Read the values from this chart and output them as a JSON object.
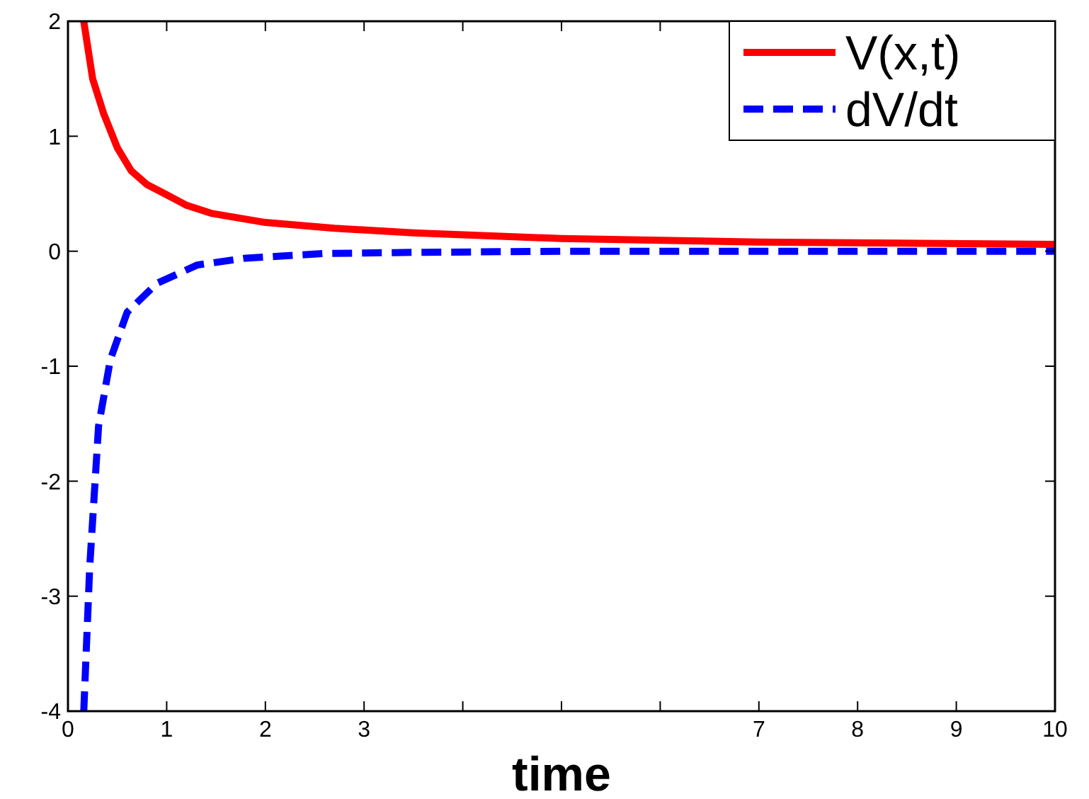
{
  "chart_data": {
    "type": "line",
    "xlabel": "time",
    "xlim": [
      0,
      10
    ],
    "ylim": [
      -4,
      2
    ],
    "xticks": [
      0,
      1,
      2,
      3,
      {
        "value": 4,
        "label": null
      },
      {
        "value": 5,
        "label": null
      },
      {
        "value": 6,
        "label": null
      },
      7,
      8,
      9,
      10
    ],
    "yticks": [
      -4,
      -3,
      -2,
      -1,
      0,
      1,
      2
    ],
    "legend": "top right",
    "grid": false,
    "series": [
      {
        "name": "V(x,t)",
        "color": "#ff0000",
        "line_style": "solid",
        "x": [
          0.16,
          0.25,
          0.36,
          0.5,
          0.64,
          0.8,
          0.98,
          1.2,
          1.45,
          2,
          2.7,
          3.5,
          5,
          7,
          10
        ],
        "values": [
          2,
          1.5,
          1.2,
          0.9,
          0.7,
          0.58,
          0.5,
          0.4,
          0.33,
          0.25,
          0.2,
          0.16,
          0.11,
          0.08,
          0.06
        ]
      },
      {
        "name": "dV/dt",
        "color": "#0000ff",
        "line_style": "dashed",
        "x": [
          0.16,
          0.22,
          0.31,
          0.43,
          0.6,
          0.9,
          1.31,
          1.8,
          2.6,
          3.5,
          5,
          7,
          10
        ],
        "values": [
          -4,
          -2.75,
          -1.52,
          -0.94,
          -0.53,
          -0.28,
          -0.12,
          -0.06,
          -0.02,
          -0.01,
          0,
          0,
          0
        ]
      }
    ]
  }
}
